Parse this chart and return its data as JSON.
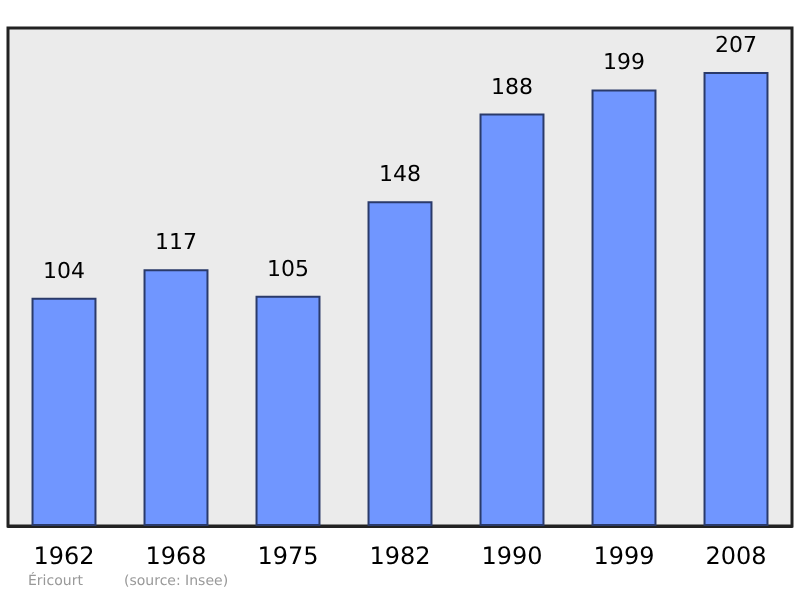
{
  "chart_data": {
    "type": "bar",
    "categories": [
      "1962",
      "1968",
      "1975",
      "1982",
      "1990",
      "1999",
      "2008"
    ],
    "values": [
      104,
      117,
      105,
      148,
      188,
      199,
      207
    ],
    "color": "#7096ff",
    "ylim": [
      0,
      227
    ],
    "data_labels": true,
    "tick_labels": "x",
    "annotations": [
      "Éricourt",
      "(source: Insee)"
    ]
  }
}
